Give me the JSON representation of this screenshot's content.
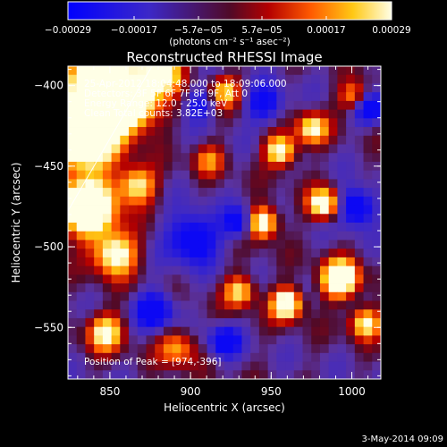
{
  "chart_data": {
    "type": "heatmap",
    "title": "Reconstructed RHESSI Image",
    "xlabel": "Heliocentric X (arcsec)",
    "ylabel": "Heliocentric Y (arcsec)",
    "xlim": [
      824,
      1018
    ],
    "ylim": [
      -582,
      -388
    ],
    "x_ticks": [
      850,
      900,
      950,
      1000
    ],
    "y_ticks": [
      -400,
      -450,
      -500,
      -550
    ],
    "x_tick_labels": [
      "850",
      "900",
      "950",
      "1000"
    ],
    "y_tick_labels": [
      "−400",
      "−450",
      "−500",
      "−550"
    ],
    "colorbar": {
      "ticks": [
        "−0.00029",
        "−0.00017",
        "−5.7e−05",
        "5.7e−05",
        "0.00017",
        "0.00029"
      ],
      "range": [
        -0.00029,
        0.00029
      ],
      "units_label": "(photons cm⁻² s⁻¹ asec⁻²)"
    },
    "annotations": {
      "time": "25-Apr-2012 18:04:48.000 to 18:09:06.000",
      "detectors": "Detectors: 3F 5F 6F 7F 8F 9F, Att 0",
      "energy": "Energy Range: 12.0 - 25.0 keV",
      "clean": "Clean    Total counts: 3.82E+03",
      "peak": "Position of Peak = [974,-396]"
    },
    "footer_date": "3-May-2014 09:09",
    "grid": {
      "cols": 36,
      "rows": 36
    }
  }
}
